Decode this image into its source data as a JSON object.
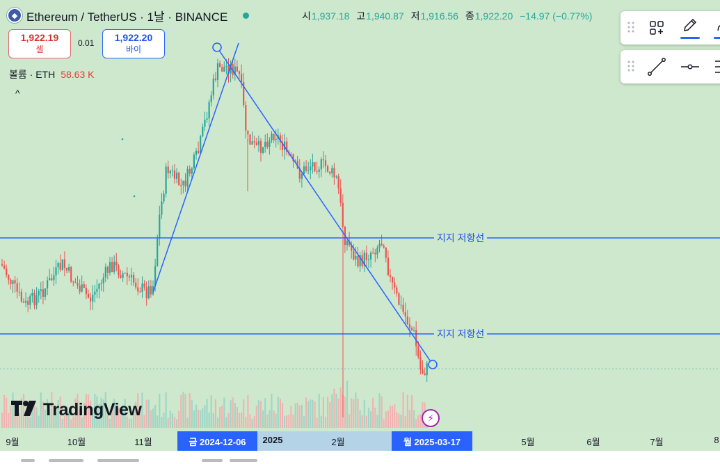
{
  "header": {
    "title": "Ethereum / TetherUS · 1날 · BINANCE",
    "open_label": "시",
    "open": "1,937.18",
    "high_label": "고",
    "high": "1,940.87",
    "low_label": "저",
    "low": "1,916.56",
    "close_label": "종",
    "close": "1,922.20",
    "change": "−14.97 (−0.77%)"
  },
  "trade": {
    "sell_price": "1,922.19",
    "sell_label": "셀",
    "spread": "0.01",
    "buy_price": "1,922.20",
    "buy_label": "바이"
  },
  "volume": {
    "label": "볼륨 · ETH",
    "value": "58.63 K"
  },
  "collapse_glyph": "^",
  "drawing_labels": {
    "upper": "지지 저항선",
    "lower": "지지 저항선"
  },
  "logo_text": "TradingView",
  "time_axis": {
    "ticks": [
      "9월",
      "10월",
      "11월",
      "2025",
      "2월",
      "5월",
      "6월",
      "7월",
      "8"
    ],
    "badge_left": "금 2024-12-06",
    "badge_right": "월 2025-03-17"
  },
  "colors": {
    "up": "#26a69a",
    "down": "#ef5350",
    "line": "#2962ff",
    "background": "#cde8cd"
  },
  "icons": [
    "drag-grip-icon",
    "shapes-icon",
    "pencil-icon",
    "trend-line-icon",
    "horizontal-line-icon",
    "menu-icon",
    "bolt-icon"
  ]
}
